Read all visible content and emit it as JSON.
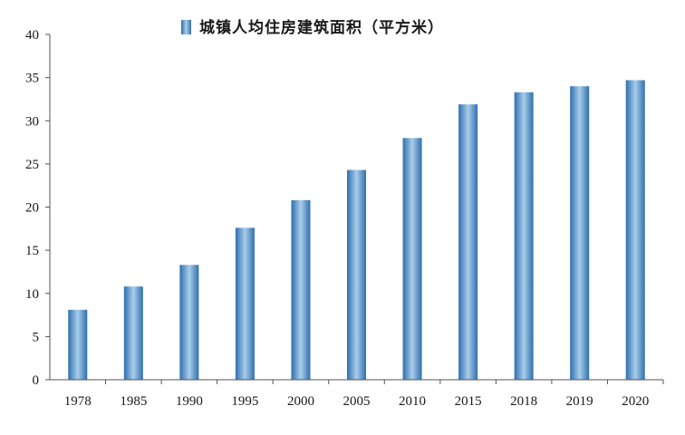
{
  "chart_data": {
    "type": "bar",
    "categories": [
      "1978",
      "1985",
      "1990",
      "1995",
      "2000",
      "2005",
      "2010",
      "2015",
      "2018",
      "2019",
      "2020"
    ],
    "series": [
      {
        "name": "城镇人均住房建筑面积（平方米）",
        "values": [
          8.1,
          10.8,
          13.3,
          17.6,
          20.8,
          24.3,
          28.0,
          31.9,
          33.3,
          34.0,
          34.7
        ]
      }
    ],
    "ylim": [
      0,
      40
    ],
    "yticks": [
      "0",
      "5",
      "10",
      "15",
      "20",
      "25",
      "30",
      "35",
      "40"
    ],
    "grid": false,
    "legend_position": "top-center",
    "colors": {
      "bar_dark": "#2f6fb0",
      "bar_light": "#a9cde9",
      "axis": "#555555"
    }
  }
}
